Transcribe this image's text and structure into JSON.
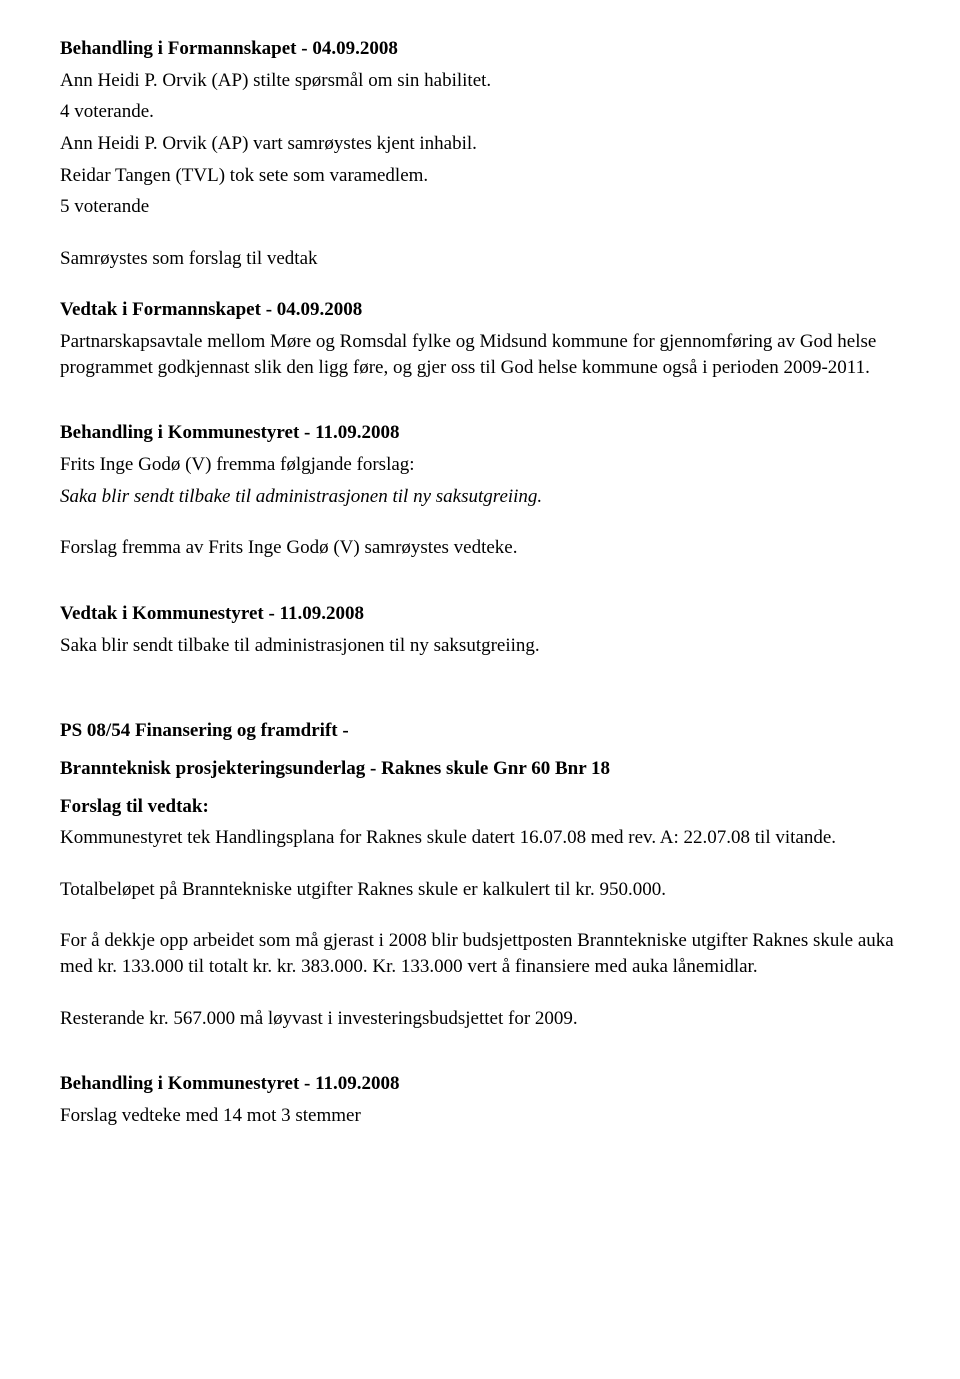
{
  "sec1": {
    "heading": "Behandling i Formannskapet - 04.09.2008",
    "p1": "Ann Heidi P. Orvik (AP) stilte spørsmål om sin habilitet.",
    "p2": "4 voterande.",
    "p3": "Ann Heidi P. Orvik (AP) vart samrøystes kjent inhabil.",
    "p4": "Reidar Tangen (TVL) tok sete som varamedlem.",
    "p5": "5 voterande",
    "p6": "Samrøystes som forslag til vedtak"
  },
  "sec2": {
    "heading": "Vedtak i Formannskapet - 04.09.2008",
    "p1": "Partnarskapsavtale mellom Møre og Romsdal fylke og Midsund kommune for gjennomføring av God helse programmet godkjennast slik den ligg føre, og gjer oss til God helse kommune også i perioden 2009-2011."
  },
  "sec3": {
    "heading": "Behandling i Kommunestyret - 11.09.2008",
    "p1": "Frits Inge Godø (V) fremma følgjande forslag:",
    "p2_italic": "Saka blir sendt tilbake til administrasjonen til ny saksutgreiing.",
    "p3": "Forslag fremma av Frits Inge Godø (V) samrøystes vedteke."
  },
  "sec4": {
    "heading": "Vedtak i Kommunestyret - 11.09.2008",
    "p1": "Saka blir sendt tilbake til administrasjonen til ny saksutgreiing."
  },
  "sec5": {
    "h1": "PS 08/54 Finansering og framdrift -",
    "h2": "Brannteknisk prosjekteringsunderlag  -   Raknes skule  Gnr 60 Bnr 18",
    "h3": "Forslag til vedtak:",
    "p1": "Kommunestyret tek Handlingsplana for Raknes skule datert 16.07.08 med rev. A: 22.07.08 til vitande.",
    "p2": "Totalbeløpet på Branntekniske utgifter Raknes skule er kalkulert til kr.  950.000.",
    "p3": "For å dekkje opp arbeidet som må gjerast i 2008 blir budsjettposten Branntekniske utgifter Raknes skule auka med kr. 133.000 til totalt kr. kr. 383.000. Kr. 133.000 vert å finansiere med auka lånemidlar.",
    "p4": "Resterande kr. 567.000 må løyvast i investeringsbudsjettet for 2009."
  },
  "sec6": {
    "heading": "Behandling i Kommunestyret - 11.09.2008",
    "p1": "Forslag  vedteke med 14 mot 3 stemmer"
  }
}
